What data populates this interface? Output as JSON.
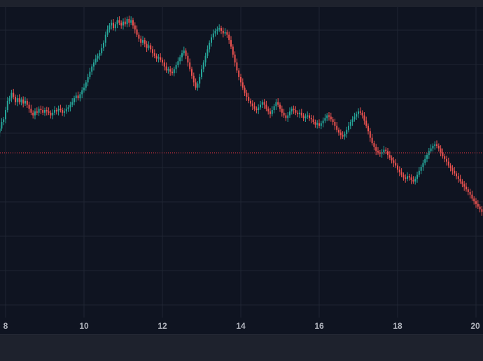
{
  "chart_data": {
    "type": "candlestick",
    "x_ticks": [
      "8",
      "10",
      "12",
      "14",
      "16",
      "18",
      "20"
    ],
    "x_tick_values": [
      8,
      10,
      12,
      14,
      16,
      18,
      20
    ],
    "grid": true,
    "price_line": {
      "style": "dotted",
      "color": "#f23645"
    },
    "colors": {
      "up": "#26a69a",
      "down": "#ef5350",
      "background": "#0f1421",
      "grid": "#1f2533"
    },
    "series": [
      {
        "values": [
          [
            7.8,
            0.4
          ],
          [
            7.85,
            0.43
          ],
          [
            7.9,
            0.48
          ],
          [
            7.95,
            0.5
          ],
          [
            8.0,
            0.57
          ],
          [
            8.05,
            0.64
          ],
          [
            8.1,
            0.66
          ],
          [
            8.15,
            0.7
          ],
          [
            8.2,
            0.67
          ],
          [
            8.25,
            0.63
          ],
          [
            8.3,
            0.66
          ],
          [
            8.35,
            0.63
          ],
          [
            8.4,
            0.65
          ],
          [
            8.45,
            0.62
          ],
          [
            8.5,
            0.64
          ],
          [
            8.55,
            0.61
          ],
          [
            8.6,
            0.58
          ],
          [
            8.65,
            0.55
          ],
          [
            8.7,
            0.53
          ],
          [
            8.75,
            0.56
          ],
          [
            8.8,
            0.55
          ],
          [
            8.85,
            0.58
          ],
          [
            8.9,
            0.57
          ],
          [
            8.95,
            0.55
          ],
          [
            9.0,
            0.57
          ],
          [
            9.05,
            0.56
          ],
          [
            9.1,
            0.55
          ],
          [
            9.15,
            0.53
          ],
          [
            9.2,
            0.55
          ],
          [
            9.25,
            0.57
          ],
          [
            9.3,
            0.56
          ],
          [
            9.35,
            0.58
          ],
          [
            9.4,
            0.57
          ],
          [
            9.45,
            0.55
          ],
          [
            9.5,
            0.56
          ],
          [
            9.55,
            0.58
          ],
          [
            9.6,
            0.59
          ],
          [
            9.65,
            0.61
          ],
          [
            9.7,
            0.63
          ],
          [
            9.75,
            0.66
          ],
          [
            9.8,
            0.68
          ],
          [
            9.85,
            0.66
          ],
          [
            9.9,
            0.69
          ],
          [
            9.95,
            0.72
          ],
          [
            10.0,
            0.74
          ],
          [
            10.05,
            0.78
          ],
          [
            10.1,
            0.82
          ],
          [
            10.15,
            0.86
          ],
          [
            10.2,
            0.9
          ],
          [
            10.25,
            0.93
          ],
          [
            10.3,
            0.96
          ],
          [
            10.35,
            0.98
          ],
          [
            10.4,
            1.0
          ],
          [
            10.45,
            1.04
          ],
          [
            10.5,
            1.08
          ],
          [
            10.55,
            1.14
          ],
          [
            10.6,
            1.18
          ],
          [
            10.65,
            1.21
          ],
          [
            10.7,
            1.23
          ],
          [
            10.75,
            1.19
          ],
          [
            10.8,
            1.22
          ],
          [
            10.85,
            1.25
          ],
          [
            10.9,
            1.23
          ],
          [
            10.95,
            1.21
          ],
          [
            11.0,
            1.24
          ],
          [
            11.05,
            1.22
          ],
          [
            11.1,
            1.26
          ],
          [
            11.15,
            1.23
          ],
          [
            11.2,
            1.25
          ],
          [
            11.25,
            1.21
          ],
          [
            11.3,
            1.18
          ],
          [
            11.35,
            1.14
          ],
          [
            11.4,
            1.11
          ],
          [
            11.45,
            1.08
          ],
          [
            11.5,
            1.1
          ],
          [
            11.55,
            1.07
          ],
          [
            11.6,
            1.04
          ],
          [
            11.65,
            1.06
          ],
          [
            11.7,
            1.03
          ],
          [
            11.75,
            1.0
          ],
          [
            11.8,
            0.98
          ],
          [
            11.85,
            0.96
          ],
          [
            11.9,
            0.97
          ],
          [
            11.95,
            0.95
          ],
          [
            12.0,
            0.93
          ],
          [
            12.05,
            0.9
          ],
          [
            12.1,
            0.87
          ],
          [
            12.15,
            0.88
          ],
          [
            12.2,
            0.86
          ],
          [
            12.25,
            0.85
          ],
          [
            12.3,
            0.88
          ],
          [
            12.35,
            0.91
          ],
          [
            12.4,
            0.94
          ],
          [
            12.45,
            0.97
          ],
          [
            12.5,
            1.0
          ],
          [
            12.55,
            1.02
          ],
          [
            12.6,
            0.98
          ],
          [
            12.65,
            0.93
          ],
          [
            12.7,
            0.88
          ],
          [
            12.75,
            0.83
          ],
          [
            12.8,
            0.78
          ],
          [
            12.85,
            0.74
          ],
          [
            12.9,
            0.77
          ],
          [
            12.95,
            0.82
          ],
          [
            13.0,
            0.88
          ],
          [
            13.05,
            0.93
          ],
          [
            13.1,
            0.98
          ],
          [
            13.15,
            1.03
          ],
          [
            13.2,
            1.08
          ],
          [
            13.25,
            1.12
          ],
          [
            13.3,
            1.15
          ],
          [
            13.35,
            1.17
          ],
          [
            13.4,
            1.18
          ],
          [
            13.45,
            1.19
          ],
          [
            13.5,
            1.17
          ],
          [
            13.55,
            1.15
          ],
          [
            13.6,
            1.16
          ],
          [
            13.65,
            1.14
          ],
          [
            13.7,
            1.1
          ],
          [
            13.75,
            1.05
          ],
          [
            13.8,
            0.99
          ],
          [
            13.85,
            0.93
          ],
          [
            13.9,
            0.87
          ],
          [
            13.95,
            0.82
          ],
          [
            14.0,
            0.78
          ],
          [
            14.05,
            0.74
          ],
          [
            14.1,
            0.7
          ],
          [
            14.15,
            0.67
          ],
          [
            14.2,
            0.64
          ],
          [
            14.25,
            0.62
          ],
          [
            14.3,
            0.6
          ],
          [
            14.35,
            0.58
          ],
          [
            14.4,
            0.57
          ],
          [
            14.45,
            0.59
          ],
          [
            14.5,
            0.61
          ],
          [
            14.55,
            0.63
          ],
          [
            14.6,
            0.61
          ],
          [
            14.65,
            0.58
          ],
          [
            14.7,
            0.56
          ],
          [
            14.75,
            0.54
          ],
          [
            14.8,
            0.57
          ],
          [
            14.85,
            0.6
          ],
          [
            14.9,
            0.63
          ],
          [
            14.95,
            0.61
          ],
          [
            15.0,
            0.58
          ],
          [
            15.05,
            0.55
          ],
          [
            15.1,
            0.53
          ],
          [
            15.15,
            0.51
          ],
          [
            15.2,
            0.53
          ],
          [
            15.25,
            0.56
          ],
          [
            15.3,
            0.58
          ],
          [
            15.35,
            0.57
          ],
          [
            15.4,
            0.55
          ],
          [
            15.45,
            0.54
          ],
          [
            15.5,
            0.55
          ],
          [
            15.55,
            0.53
          ],
          [
            15.6,
            0.51
          ],
          [
            15.65,
            0.52
          ],
          [
            15.7,
            0.53
          ],
          [
            15.75,
            0.51
          ],
          [
            15.8,
            0.5
          ],
          [
            15.85,
            0.48
          ],
          [
            15.9,
            0.46
          ],
          [
            15.95,
            0.47
          ],
          [
            16.0,
            0.45
          ],
          [
            16.05,
            0.47
          ],
          [
            16.1,
            0.49
          ],
          [
            16.15,
            0.51
          ],
          [
            16.2,
            0.53
          ],
          [
            16.25,
            0.52
          ],
          [
            16.3,
            0.5
          ],
          [
            16.35,
            0.48
          ],
          [
            16.4,
            0.45
          ],
          [
            16.45,
            0.42
          ],
          [
            16.5,
            0.4
          ],
          [
            16.55,
            0.38
          ],
          [
            16.6,
            0.37
          ],
          [
            16.65,
            0.39
          ],
          [
            16.7,
            0.42
          ],
          [
            16.75,
            0.45
          ],
          [
            16.8,
            0.48
          ],
          [
            16.85,
            0.5
          ],
          [
            16.9,
            0.52
          ],
          [
            16.95,
            0.54
          ],
          [
            17.0,
            0.56
          ],
          [
            17.05,
            0.55
          ],
          [
            17.1,
            0.53
          ],
          [
            17.15,
            0.49
          ],
          [
            17.2,
            0.45
          ],
          [
            17.25,
            0.41
          ],
          [
            17.3,
            0.36
          ],
          [
            17.35,
            0.32
          ],
          [
            17.4,
            0.29
          ],
          [
            17.45,
            0.26
          ],
          [
            17.5,
            0.25
          ],
          [
            17.55,
            0.24
          ],
          [
            17.6,
            0.25
          ],
          [
            17.65,
            0.27
          ],
          [
            17.7,
            0.26
          ],
          [
            17.75,
            0.23
          ],
          [
            17.8,
            0.21
          ],
          [
            17.85,
            0.19
          ],
          [
            17.9,
            0.17
          ],
          [
            17.95,
            0.15
          ],
          [
            18.0,
            0.12
          ],
          [
            18.05,
            0.1
          ],
          [
            18.1,
            0.08
          ],
          [
            18.15,
            0.06
          ],
          [
            18.2,
            0.05
          ],
          [
            18.25,
            0.07
          ],
          [
            18.3,
            0.06
          ],
          [
            18.35,
            0.04
          ],
          [
            18.4,
            0.03
          ],
          [
            18.45,
            0.05
          ],
          [
            18.5,
            0.08
          ],
          [
            18.55,
            0.11
          ],
          [
            18.6,
            0.14
          ],
          [
            18.65,
            0.17
          ],
          [
            18.7,
            0.2
          ],
          [
            18.75,
            0.23
          ],
          [
            18.8,
            0.26
          ],
          [
            18.85,
            0.28
          ],
          [
            18.9,
            0.3
          ],
          [
            18.95,
            0.31
          ],
          [
            19.0,
            0.3
          ],
          [
            19.05,
            0.28
          ],
          [
            19.1,
            0.25
          ],
          [
            19.15,
            0.22
          ],
          [
            19.2,
            0.2
          ],
          [
            19.25,
            0.18
          ],
          [
            19.3,
            0.15
          ],
          [
            19.35,
            0.13
          ],
          [
            19.4,
            0.11
          ],
          [
            19.45,
            0.09
          ],
          [
            19.5,
            0.07
          ],
          [
            19.55,
            0.05
          ],
          [
            19.6,
            0.03
          ],
          [
            19.65,
            0.01
          ],
          [
            19.7,
            -0.01
          ],
          [
            19.75,
            -0.03
          ],
          [
            19.8,
            -0.05
          ],
          [
            19.85,
            -0.07
          ],
          [
            19.9,
            -0.1
          ],
          [
            19.95,
            -0.12
          ],
          [
            20.0,
            -0.14
          ],
          [
            20.05,
            -0.16
          ],
          [
            20.1,
            -0.18
          ],
          [
            20.15,
            -0.2
          ]
        ]
      }
    ]
  }
}
